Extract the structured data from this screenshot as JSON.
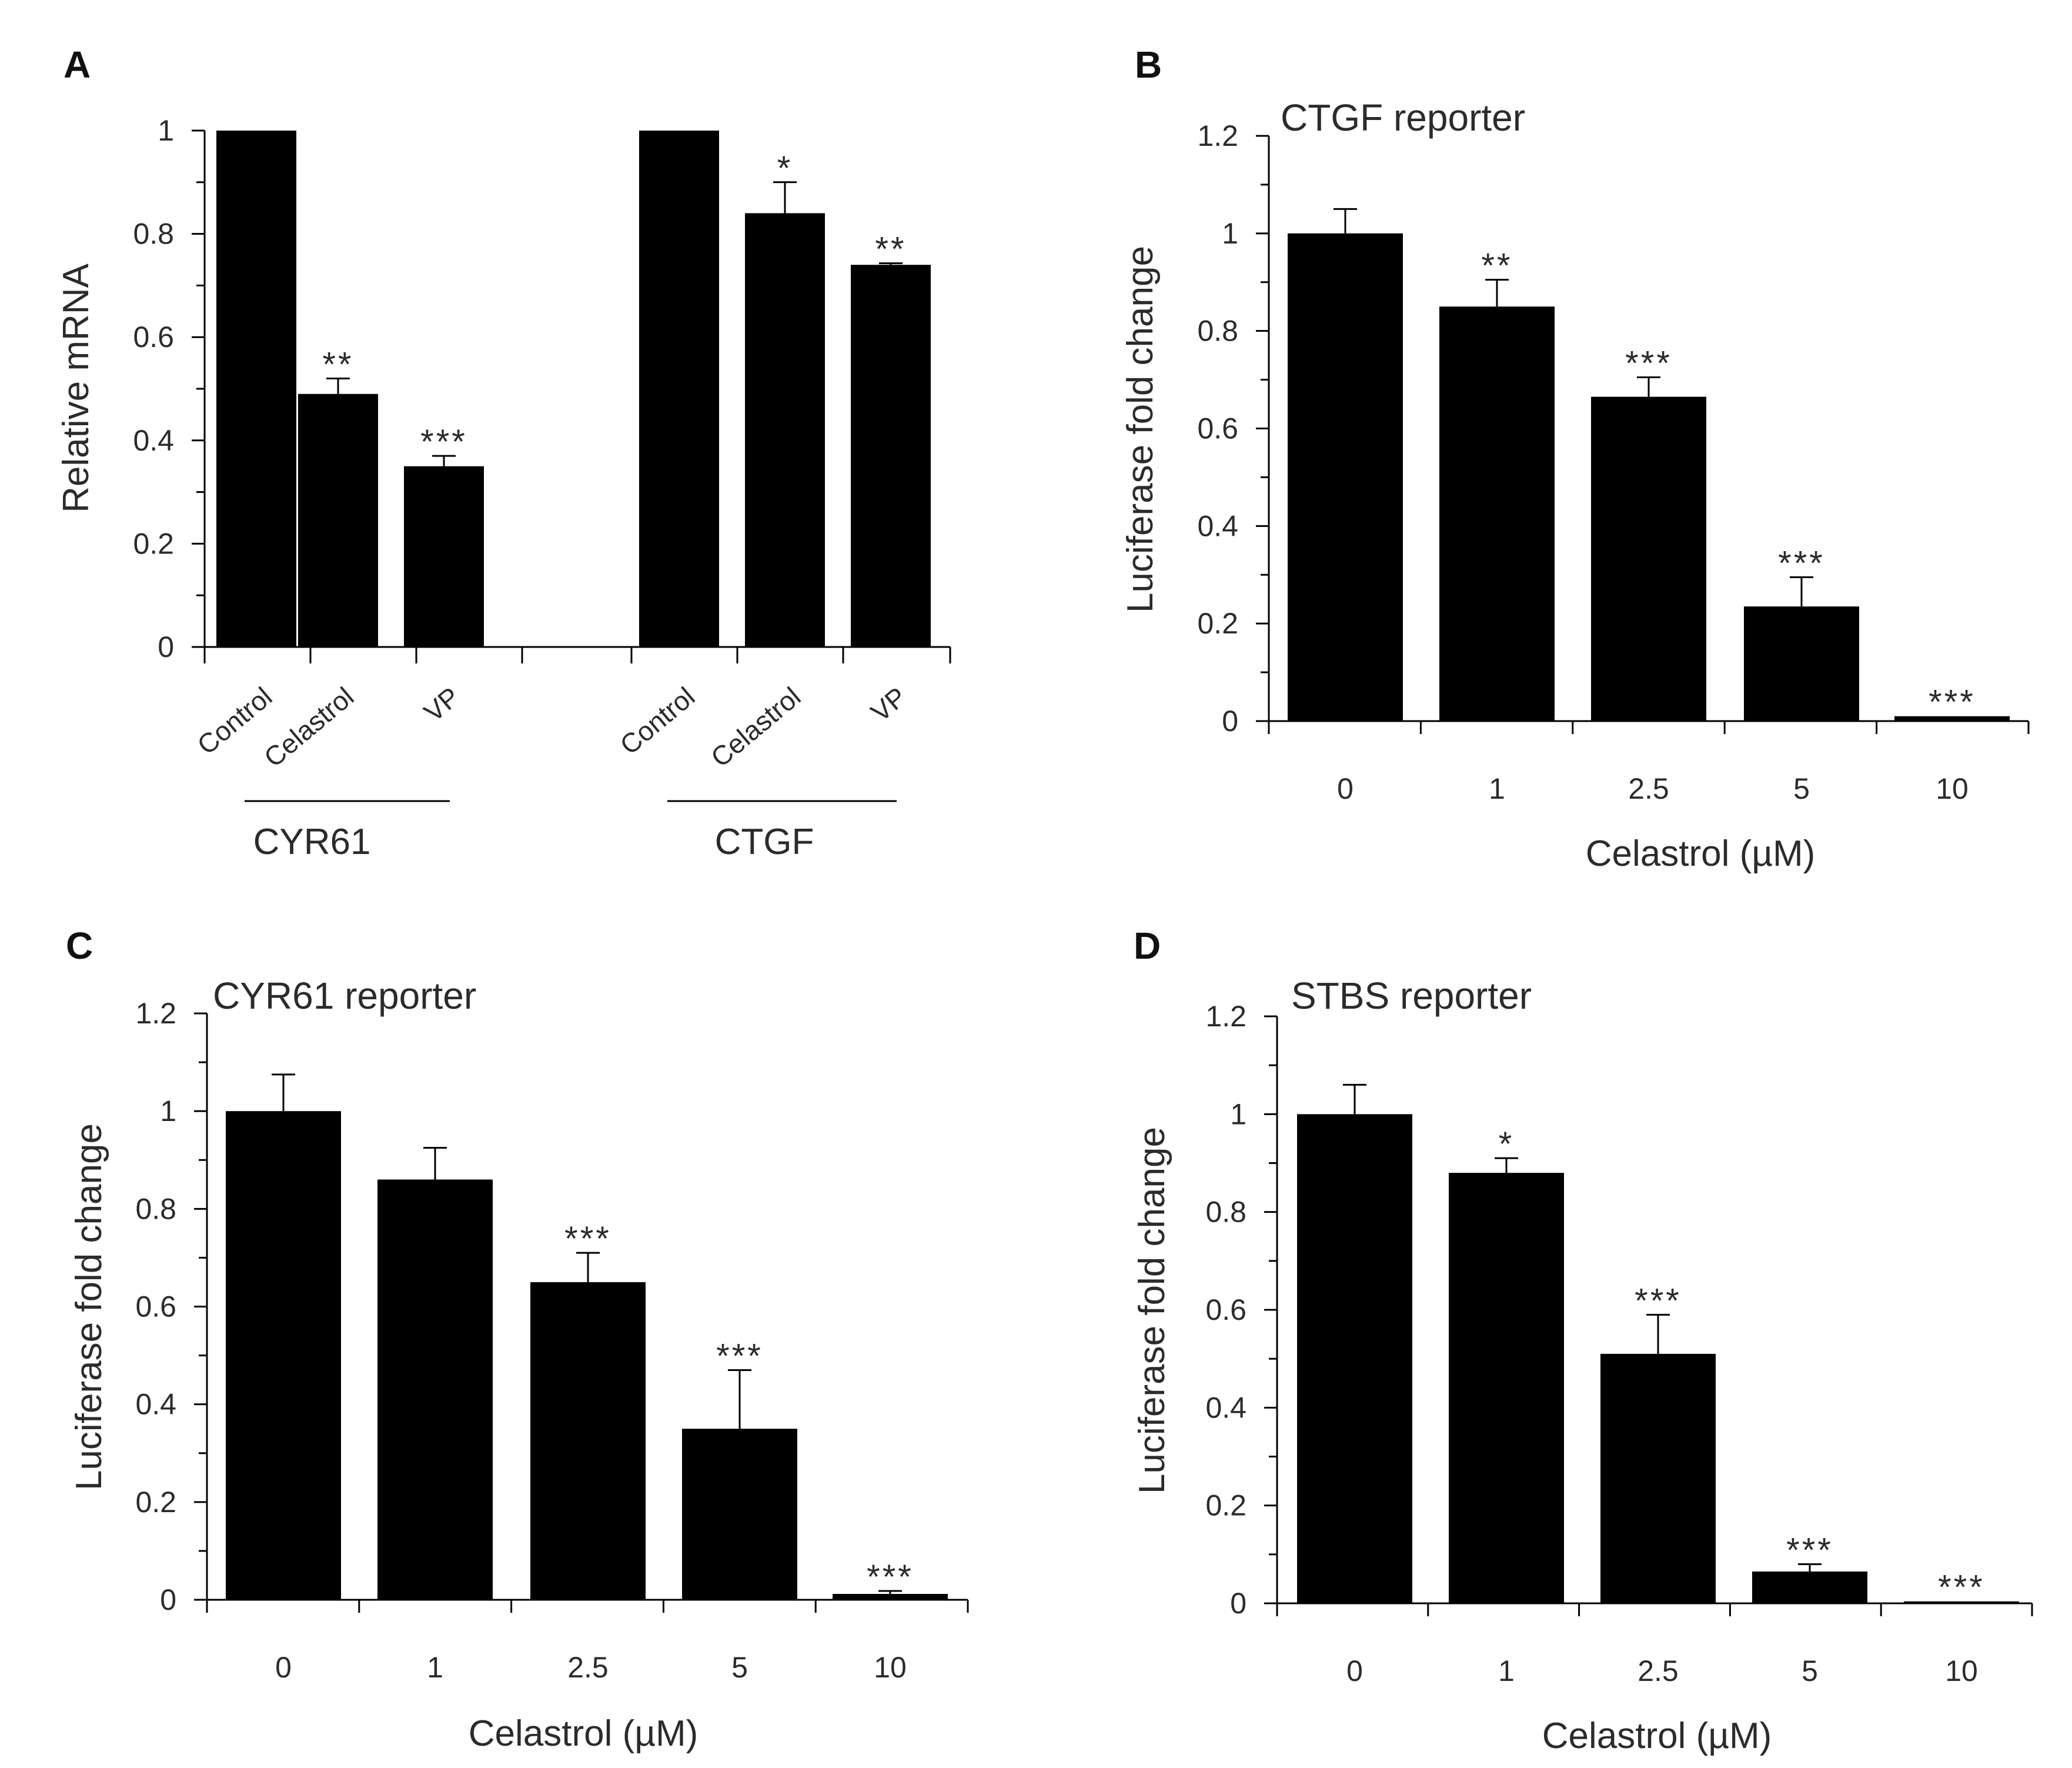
{
  "chart_data": [
    {
      "panel": "A",
      "type": "bar",
      "title": "",
      "ylabel": "Relative mRNA",
      "xlabel": "",
      "ylim": [
        0,
        1
      ],
      "yticks": [
        "0",
        "0.2",
        "0.4",
        "0.6",
        "0.8",
        "1"
      ],
      "groups": [
        {
          "name": "CYR61",
          "categories": [
            "Control",
            "Celastrol",
            "VP"
          ],
          "values": [
            1.0,
            0.49,
            0.35
          ],
          "errors": [
            0,
            0.03,
            0.02
          ],
          "annotations": [
            "",
            "**",
            "***"
          ]
        },
        {
          "name": "CTGF",
          "categories": [
            "Control",
            "Celastrol",
            "VP"
          ],
          "values": [
            1.0,
            0.84,
            0.74
          ],
          "errors": [
            0,
            0.06,
            0.003
          ],
          "annotations": [
            "",
            "*",
            "**"
          ]
        }
      ],
      "color": "#000000"
    },
    {
      "panel": "B",
      "type": "bar",
      "title": "CTGF reporter",
      "ylabel": "Luciferase fold change",
      "xlabel": "Celastrol (µM)",
      "ylim": [
        0,
        1.2
      ],
      "yticks": [
        "0",
        "0.2",
        "0.4",
        "0.6",
        "0.8",
        "1",
        "1.2"
      ],
      "categories": [
        "0",
        "1",
        "2.5",
        "5",
        "10"
      ],
      "values": [
        1.0,
        0.85,
        0.665,
        0.235,
        0.01
      ],
      "errors": [
        0.05,
        0.055,
        0.04,
        0.06,
        0.0
      ],
      "annotations": [
        "",
        "**",
        "***",
        "***",
        "***"
      ],
      "color": "#000000"
    },
    {
      "panel": "C",
      "type": "bar",
      "title": "CYR61 reporter",
      "ylabel": "Luciferase fold change",
      "xlabel": "Celastrol (µM)",
      "ylim": [
        0,
        1.2
      ],
      "yticks": [
        "0",
        "0.2",
        "0.4",
        "0.6",
        "0.8",
        "1",
        "1.2"
      ],
      "categories": [
        "0",
        "1",
        "2.5",
        "5",
        "10"
      ],
      "values": [
        1.0,
        0.86,
        0.65,
        0.35,
        0.012
      ],
      "errors": [
        0.075,
        0.065,
        0.06,
        0.12,
        0.006
      ],
      "annotations": [
        "",
        "",
        "***",
        "***",
        "***"
      ],
      "color": "#000000"
    },
    {
      "panel": "D",
      "type": "bar",
      "title": "STBS reporter",
      "ylabel": "Luciferase fold change",
      "xlabel": "Celastrol (µM)",
      "ylim": [
        0,
        1.2
      ],
      "yticks": [
        "0",
        "0.2",
        "0.4",
        "0.6",
        "0.8",
        "1",
        "1.2"
      ],
      "categories": [
        "0",
        "1",
        "2.5",
        "5",
        "10"
      ],
      "values": [
        1.0,
        0.88,
        0.51,
        0.065,
        0.004
      ],
      "errors": [
        0.06,
        0.03,
        0.08,
        0.015,
        0.0
      ],
      "annotations": [
        "",
        "*",
        "***",
        "***",
        "***"
      ],
      "color": "#000000"
    }
  ]
}
